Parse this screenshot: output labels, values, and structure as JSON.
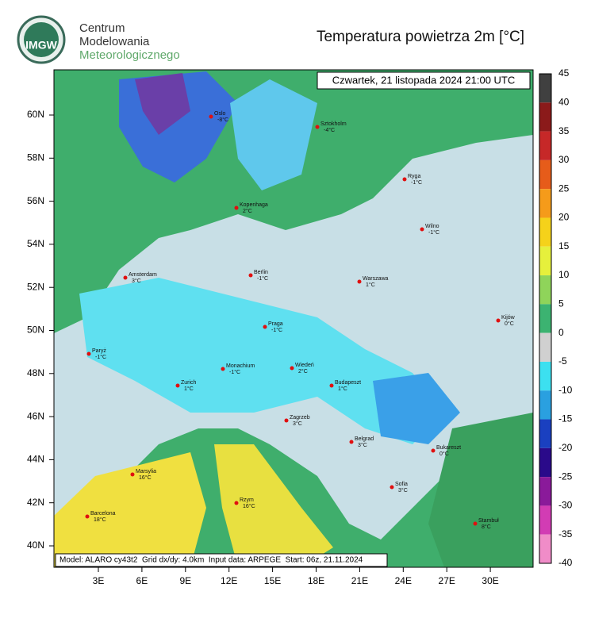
{
  "logo": {
    "text": "IMGW",
    "lines": [
      "Centrum",
      "Modelowania",
      "Meteorologicznego"
    ]
  },
  "title": "Temperatura powietrza 2m [°C]",
  "date": "Czwartek, 21 listopada 2024 21:00 UTC",
  "footer": "Model: ALARO cy43t2  Grid dx/dy: 4.0km  Input data: ARPEGE  Start: 06z, 21.11.2024",
  "latitudes": [
    "60N",
    "58N",
    "56N",
    "54N",
    "52N",
    "50N",
    "48N",
    "46N",
    "44N",
    "42N",
    "40N"
  ],
  "longitudes": [
    "3E",
    "6E",
    "9E",
    "12E",
    "15E",
    "18E",
    "21E",
    "24E",
    "27E",
    "30E"
  ],
  "colorbar": {
    "ticks": [
      45,
      40,
      35,
      30,
      25,
      20,
      15,
      10,
      5,
      0,
      -5,
      -10,
      -15,
      -20,
      -25,
      -30,
      -35,
      -40
    ]
  },
  "cities": [
    {
      "name": "Oslo",
      "temp": "-8°C"
    },
    {
      "name": "Sztokholm",
      "temp": "-4°C"
    },
    {
      "name": "Ryga",
      "temp": "-1°C"
    },
    {
      "name": "Kopenhaga",
      "temp": "2°C"
    },
    {
      "name": "Wilno",
      "temp": "-1°C"
    },
    {
      "name": "Amsterdam",
      "temp": "3°C"
    },
    {
      "name": "Berlin",
      "temp": "-1°C"
    },
    {
      "name": "Warszawa",
      "temp": "1°C"
    },
    {
      "name": "Kijów",
      "temp": "0°C"
    },
    {
      "name": "Praga",
      "temp": "-1°C"
    },
    {
      "name": "Paryż",
      "temp": "-1°C"
    },
    {
      "name": "Monachium",
      "temp": "-1°C"
    },
    {
      "name": "Wiedeń",
      "temp": "2°C"
    },
    {
      "name": "Zurich",
      "temp": "1°C"
    },
    {
      "name": "Budapeszt",
      "temp": "1°C"
    },
    {
      "name": "Zagrzeb",
      "temp": "3°C"
    },
    {
      "name": "Belgrad",
      "temp": "3°C"
    },
    {
      "name": "Bukareszt",
      "temp": "0°C"
    },
    {
      "name": "Marsylia",
      "temp": "16°C"
    },
    {
      "name": "Rzym",
      "temp": "16°C"
    },
    {
      "name": "Sofia",
      "temp": "3°C"
    },
    {
      "name": "Barcelona",
      "temp": "18°C"
    },
    {
      "name": "Stambuł",
      "temp": "8°C"
    }
  ]
}
